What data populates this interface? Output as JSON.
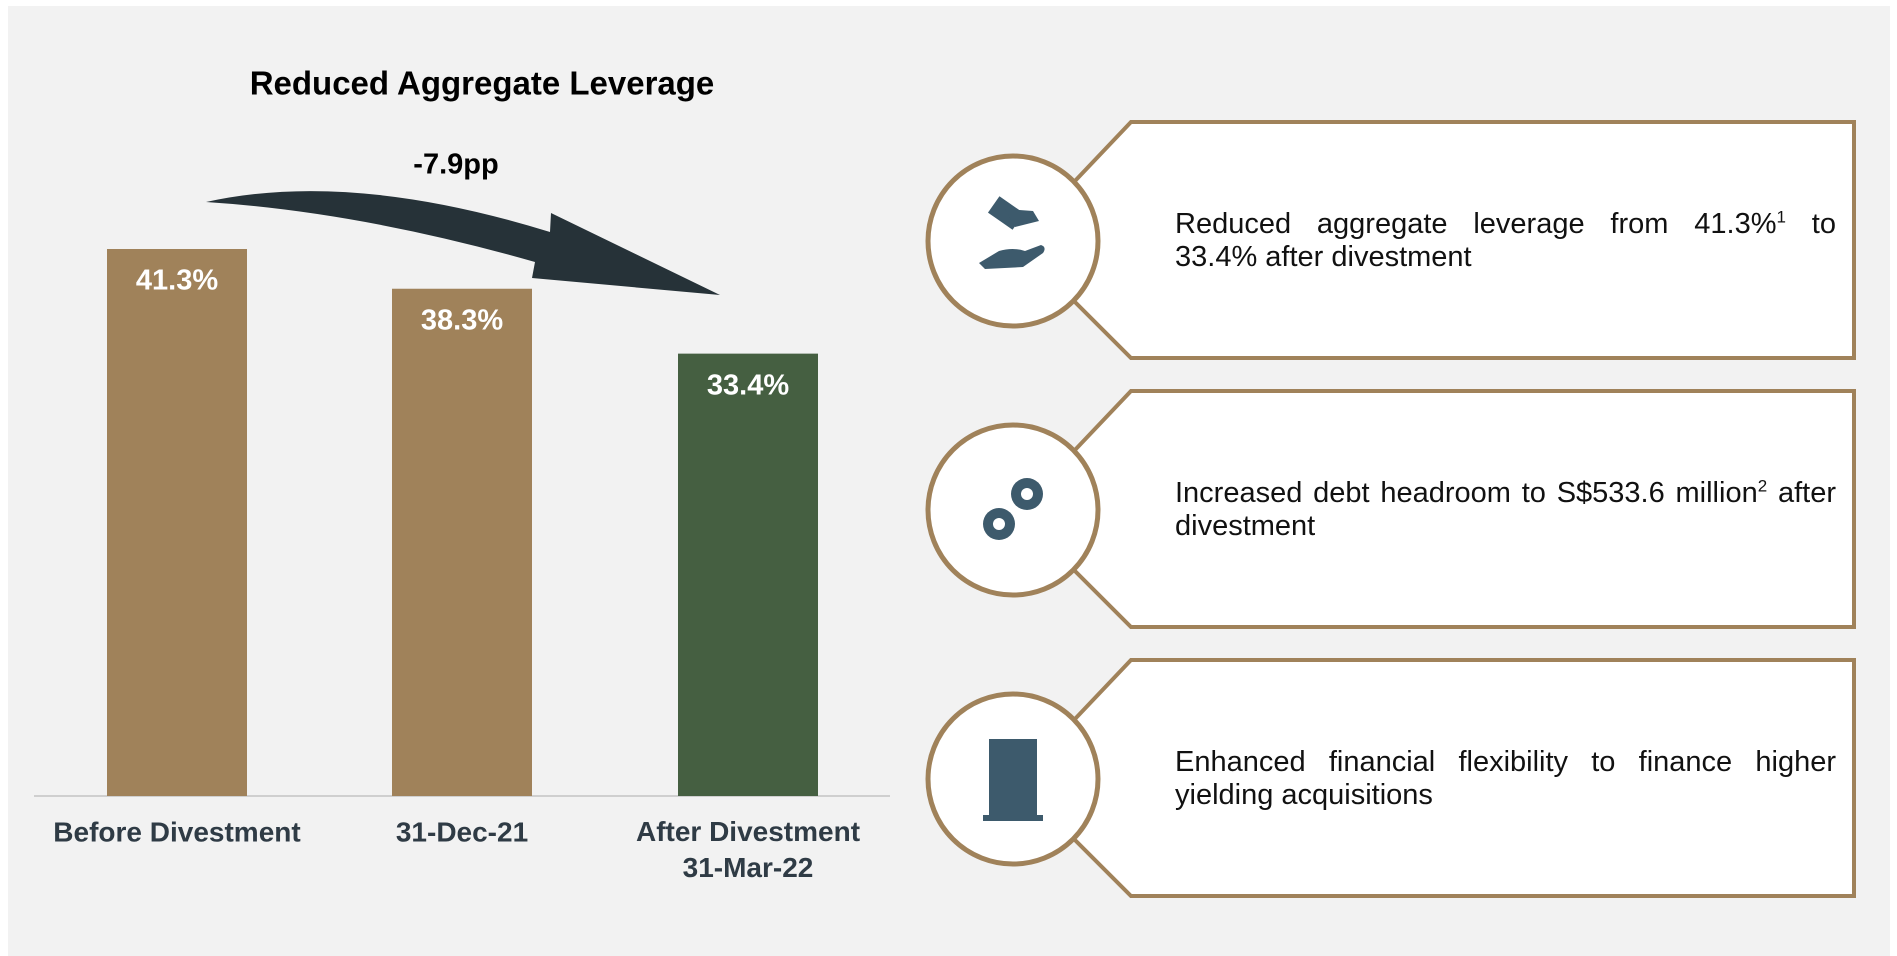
{
  "chart_data": {
    "type": "bar",
    "title": "Reduced Aggregate Leverage",
    "annotation": "-7.9pp",
    "categories": [
      "Before Divestment",
      "31-Dec-21",
      "After Divestment\n31-Mar-22"
    ],
    "values": [
      41.3,
      38.3,
      33.4
    ],
    "value_labels": [
      "41.3%",
      "38.3%",
      "33.4%"
    ],
    "colors": [
      "#a0825a",
      "#a0825a",
      "#455f41"
    ],
    "ylim": [
      0,
      45
    ]
  },
  "panels": [
    {
      "text": "Reduced aggregate leverage from 41.3%",
      "sup": "1",
      "text_after": " to 33.4% after divestment"
    },
    {
      "text": "Increased debt headroom to S$533.6 million",
      "sup": "2",
      "text_after": " after divestment"
    },
    {
      "text": "Enhanced financial flexibility to finance higher yielding acquisitions"
    }
  ]
}
